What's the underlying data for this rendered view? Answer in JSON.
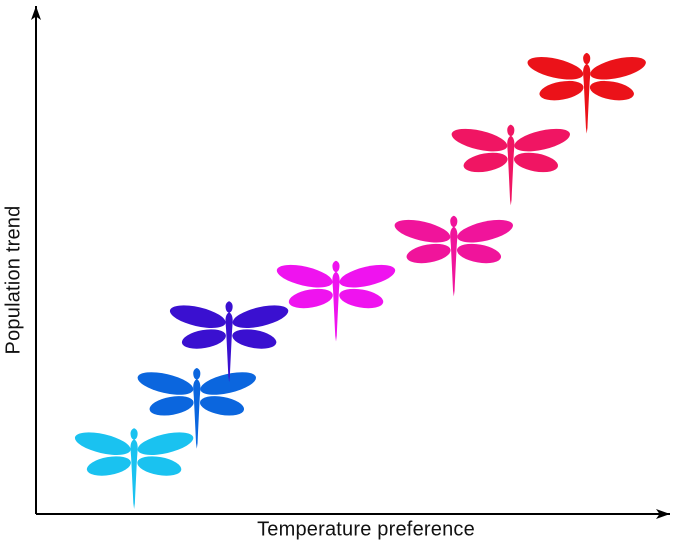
{
  "figure": {
    "background_color": "#ffffff",
    "axis_color": "#000000"
  },
  "chart_data": {
    "type": "scatter",
    "title": "",
    "xlabel": "Temperature preference",
    "ylabel": "Population trend",
    "xlim": [
      0,
      1
    ],
    "ylim": [
      0,
      1
    ],
    "grid": false,
    "ticks": "none",
    "legend": "none",
    "axes_style": "arrow-ended axes, conceptual diagram without tick labels",
    "marker": "dragonfly-silhouette",
    "marker_wingspan_px": 122,
    "series": [
      {
        "name": "dragonflies",
        "points": [
          {
            "label": "dragonfly-1-cyan",
            "x": 0.155,
            "y": 0.115,
            "color": "#1AC2F0"
          },
          {
            "label": "dragonfly-2-blue",
            "x": 0.254,
            "y": 0.234,
            "color": "#0B66DE"
          },
          {
            "label": "dragonfly-3-blueviolet",
            "x": 0.305,
            "y": 0.366,
            "color": "#3A10D0"
          },
          {
            "label": "dragonfly-4-magenta",
            "x": 0.474,
            "y": 0.446,
            "color": "#EF13EF"
          },
          {
            "label": "dragonfly-5-deeppink",
            "x": 0.66,
            "y": 0.535,
            "color": "#F0149B"
          },
          {
            "label": "dragonfly-6-crimson",
            "x": 0.75,
            "y": 0.715,
            "color": "#F01563"
          },
          {
            "label": "dragonfly-7-red",
            "x": 0.87,
            "y": 0.857,
            "color": "#EB1219"
          }
        ]
      }
    ]
  }
}
